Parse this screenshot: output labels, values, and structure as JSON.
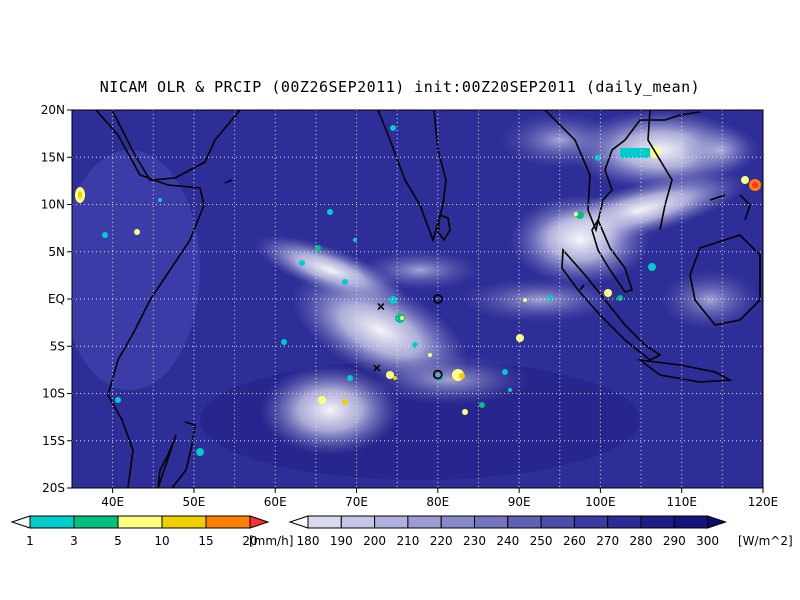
{
  "title": "NICAM OLR & PRCIP (00Z26SEP2011) init:00Z20SEP2011 (daily_mean)",
  "map": {
    "lat_labels": [
      "20N",
      "15N",
      "10N",
      "5N",
      "EQ",
      "5S",
      "10S",
      "15S",
      "20S"
    ],
    "lon_labels": [
      "40E",
      "50E",
      "60E",
      "70E",
      "80E",
      "90E",
      "100E",
      "110E",
      "120E"
    ],
    "lon_range": [
      35,
      120
    ],
    "lat_range": [
      -20,
      20
    ],
    "grid": "dotted",
    "coastline_color": "#000000",
    "markers": [
      {
        "type": "circle",
        "lon": 80,
        "lat": 0
      },
      {
        "type": "circle",
        "lon": 80,
        "lat": -8
      },
      {
        "type": "cross",
        "lon": 73,
        "lat": -0.8
      },
      {
        "type": "cross",
        "lon": 72.5,
        "lat": -7.3
      }
    ]
  },
  "precip_legend": {
    "labels": [
      "1",
      "3",
      "5",
      "10",
      "15",
      "20"
    ],
    "unit": "[mm/h]",
    "colors": [
      "#00cccc",
      "#00c080",
      "#ffff80",
      "#f0d000",
      "#ff8000",
      "#ff3030"
    ]
  },
  "olr_legend": {
    "labels": [
      "180",
      "190",
      "200",
      "210",
      "220",
      "230",
      "240",
      "250",
      "260",
      "270",
      "280",
      "290",
      "300"
    ],
    "unit": "[W/m^2]",
    "colors": [
      "#ececf6",
      "#d8d8ee",
      "#c4c4e6",
      "#b0b0de",
      "#9c9cd4",
      "#8888ca",
      "#7474bf",
      "#6060b4",
      "#4c4caa",
      "#3a3aa0",
      "#2c2c94",
      "#1e1e88",
      "#14147c",
      "#0c0c70"
    ]
  }
}
